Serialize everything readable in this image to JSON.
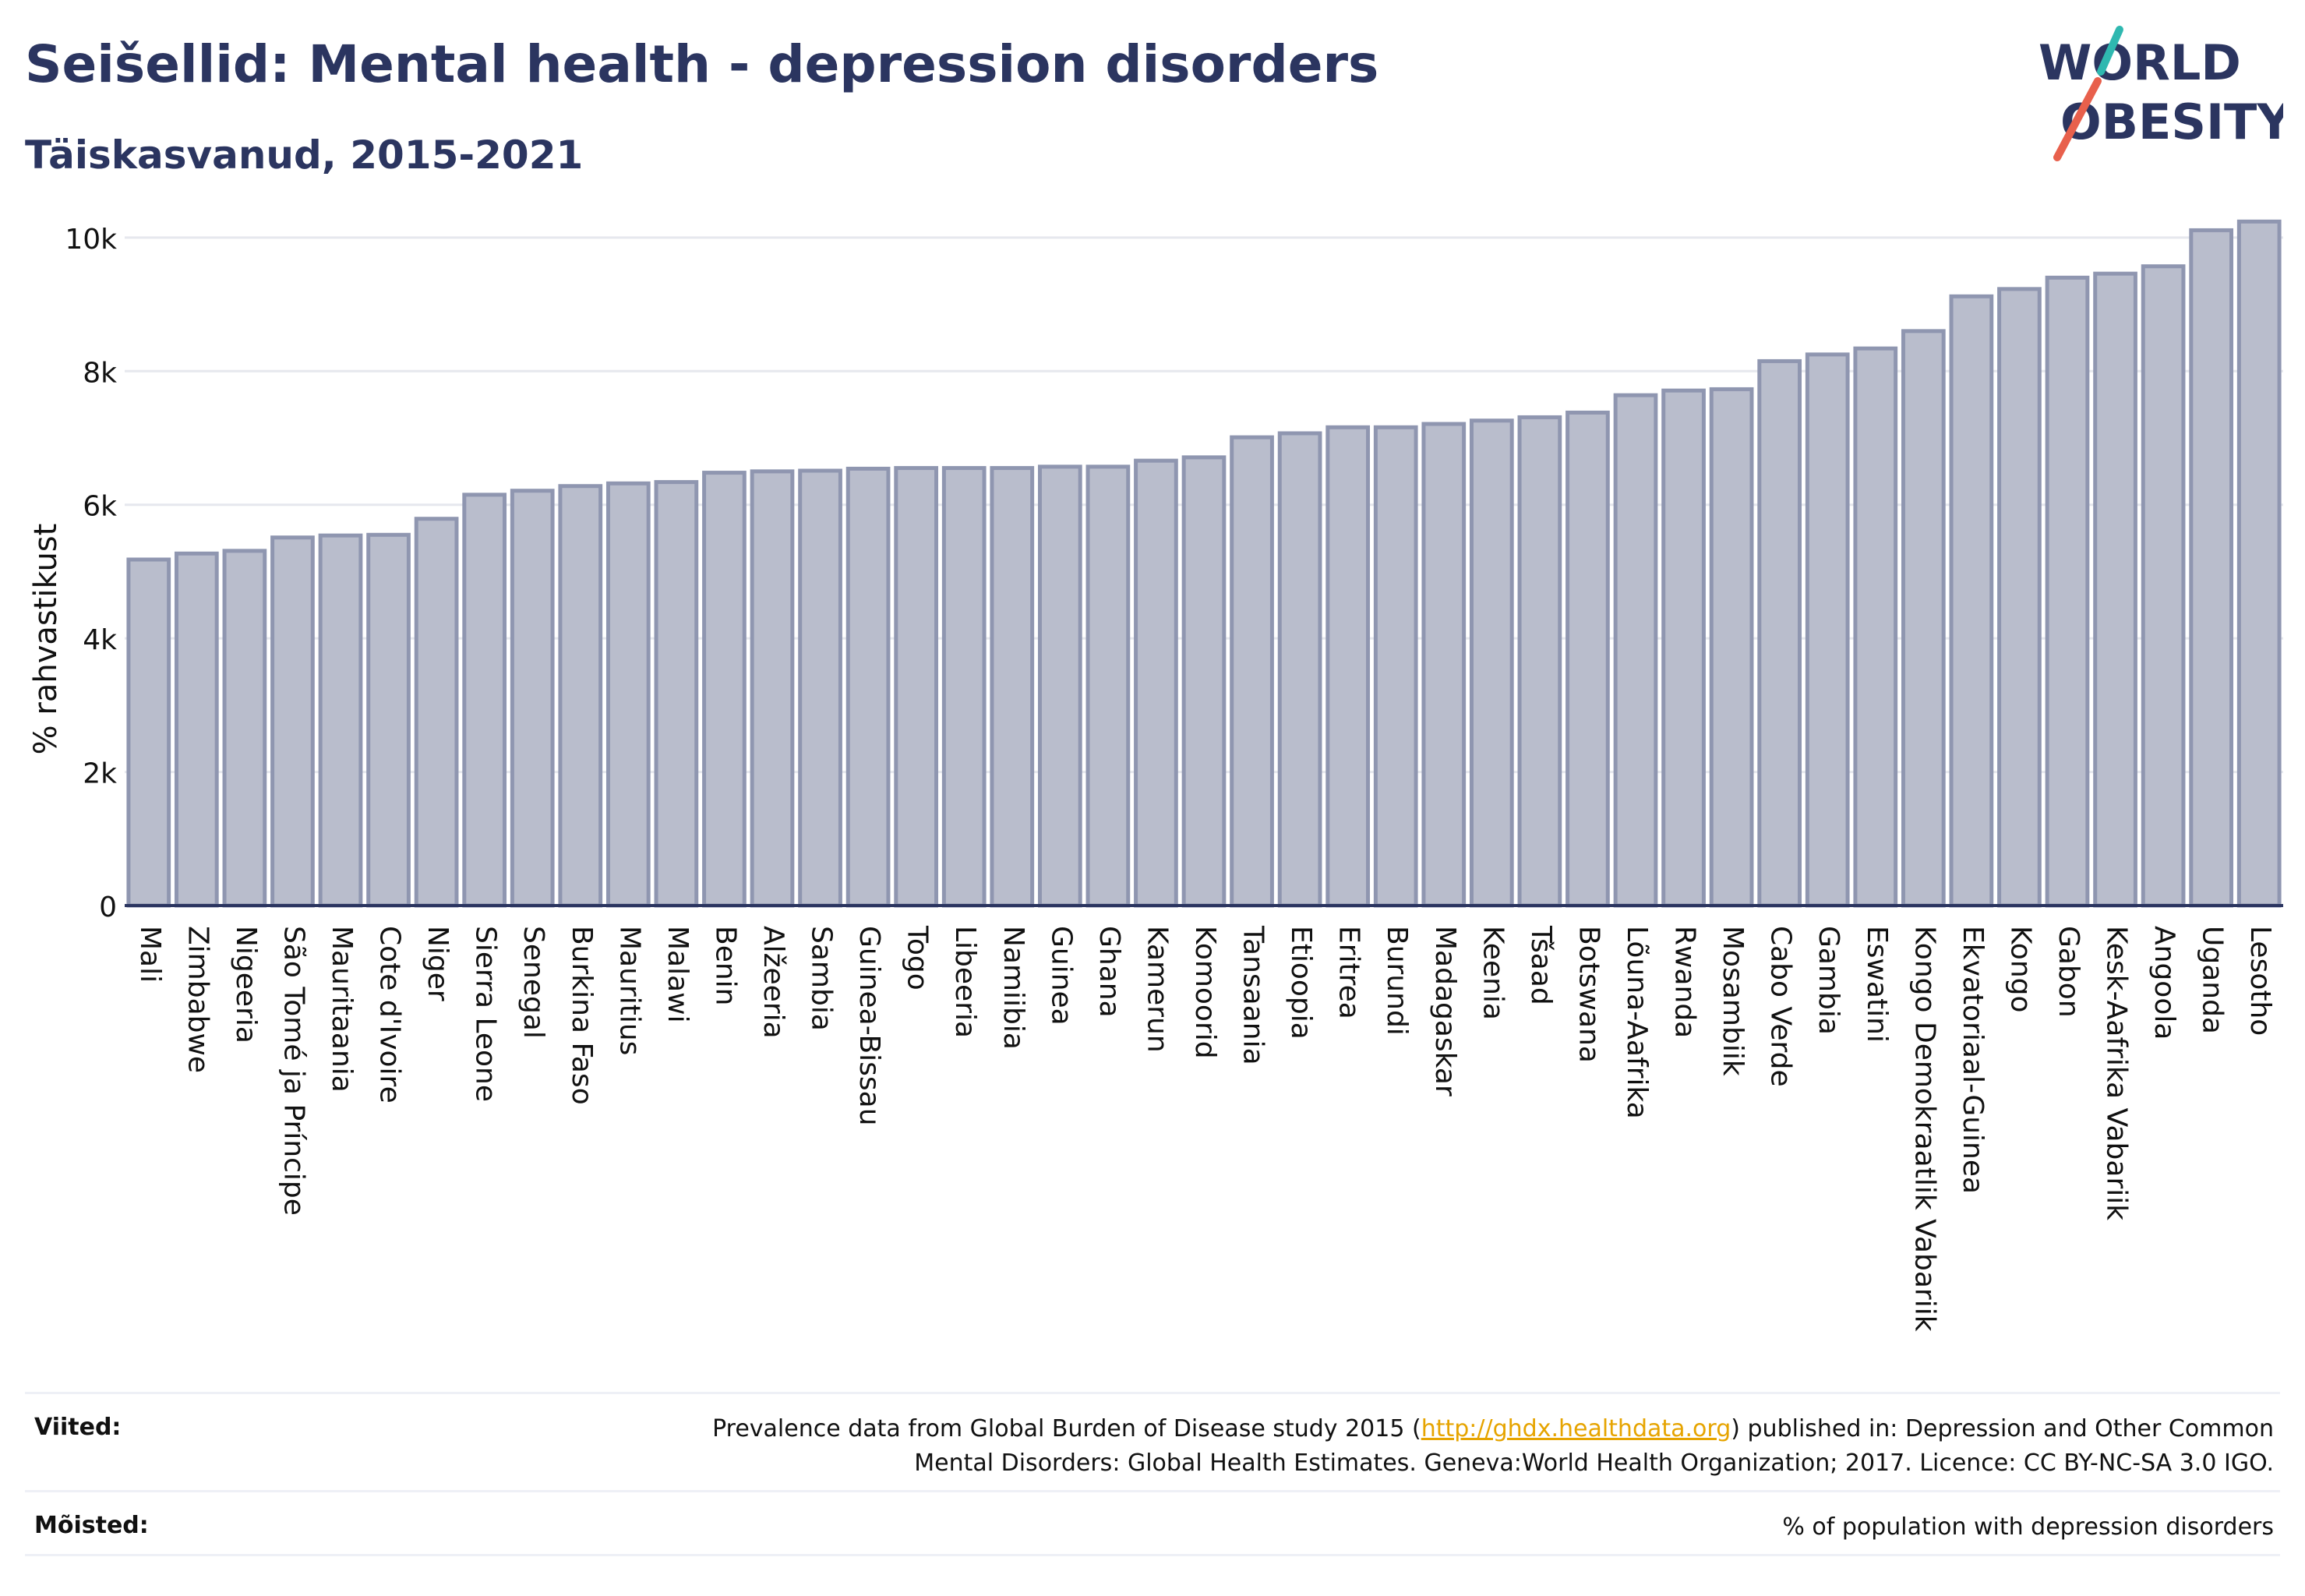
{
  "header": {
    "title": "Seišellid: Mental health - depression disorders",
    "subtitle": "Täiskasvanud, 2015-2021"
  },
  "logo": {
    "line1": "WORLD",
    "line2": "OBESITY",
    "accent_teal": "#2fb8b0",
    "accent_red": "#e8604c",
    "text_color": "#2b3560"
  },
  "colors": {
    "bar_fill": "#b9bdcc",
    "bar_stroke": "#8f96b0",
    "axis": "#2b3560",
    "grid": "#e6e8ee"
  },
  "chart_data": {
    "type": "bar",
    "ylabel": "% rahvastikust",
    "ylim": [
      0,
      10500
    ],
    "yticks": [
      0,
      2000,
      4000,
      6000,
      8000,
      10000
    ],
    "ytick_labels": [
      "0",
      "2k",
      "4k",
      "6k",
      "8k",
      "10k"
    ],
    "grid": true,
    "categories": [
      "Mali",
      "Zimbabwe",
      "Nigeeria",
      "São Tomé ja Príncipe",
      "Mauritaania",
      "Cote d'Ivoire",
      "Niger",
      "Sierra Leone",
      "Senegal",
      "Burkina Faso",
      "Mauritius",
      "Malawi",
      "Benin",
      "Alžeeria",
      "Sambia",
      "Guinea-Bissau",
      "Togo",
      "Libeeria",
      "Namiibia",
      "Guinea",
      "Ghana",
      "Kamerun",
      "Komoorid",
      "Tansaania",
      "Etioopia",
      "Eritrea",
      "Burundi",
      "Madagaskar",
      "Keenia",
      "Tšaad",
      "Botswana",
      "Lõuna-Aafrika",
      "Rwanda",
      "Mosambiik",
      "Cabo Verde",
      "Gambia",
      "Eswatini",
      "Kongo Demokraatlik Vabariik",
      "Ekvatoriaal-Guinea",
      "Kongo",
      "Gabon",
      "Kesk-Aafrika Vabariik",
      "Angoola",
      "Uganda",
      "Lesotho"
    ],
    "values": [
      5180,
      5270,
      5310,
      5510,
      5540,
      5550,
      5790,
      6150,
      6210,
      6280,
      6320,
      6340,
      6480,
      6500,
      6510,
      6540,
      6550,
      6550,
      6550,
      6570,
      6570,
      6660,
      6710,
      7010,
      7070,
      7160,
      7160,
      7210,
      7260,
      7310,
      7380,
      7640,
      7710,
      7730,
      8150,
      8250,
      8340,
      8600,
      9120,
      9230,
      9400,
      9460,
      9570,
      10110,
      10240
    ]
  },
  "footer": {
    "sources_label": "Viited:",
    "sources_text_before": "Prevalence data from Global Burden of Disease study 2015 (",
    "sources_link": "http://ghdx.healthdata.org",
    "sources_text_after": ") published in: Depression and Other Common",
    "sources_text_line2": "Mental Disorders: Global Health Estimates. Geneva:World Health Organization; 2017. Licence: CC BY-NC-SA 3.0 IGO.",
    "definitions_label": "Mõisted:",
    "definitions_text": "% of population with depression disorders"
  }
}
